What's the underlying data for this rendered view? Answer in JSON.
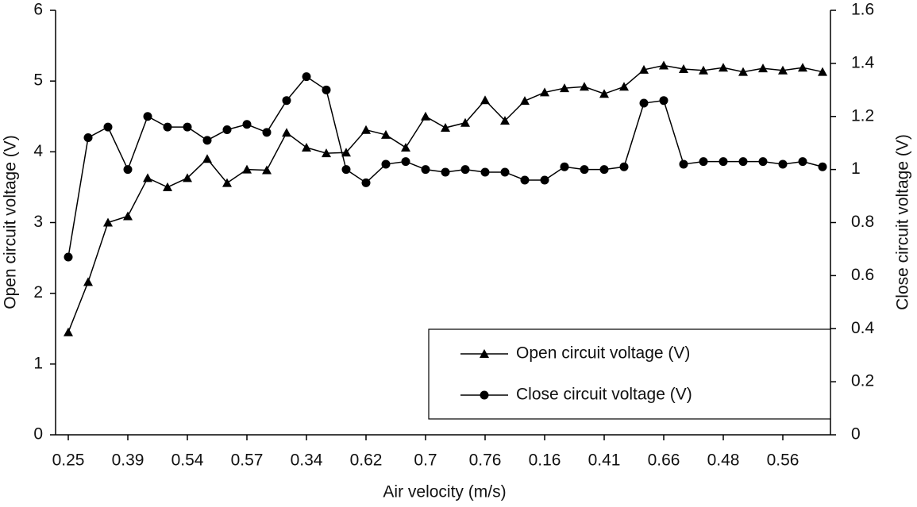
{
  "chart_data": {
    "type": "line",
    "xlabel": "Air velocity (m/s)",
    "ylabel": "Open circuit voltage (V)",
    "y2label": "Close circuit voltage (V)",
    "categories": [
      "0.25",
      null,
      null,
      "0.39",
      null,
      null,
      "0.54",
      null,
      null,
      "0.57",
      null,
      null,
      "0.34",
      null,
      null,
      "0.62",
      null,
      null,
      "0.7",
      null,
      null,
      "0.76",
      null,
      null,
      "0.16",
      null,
      null,
      "0.41",
      null,
      null,
      "0.66",
      null,
      null,
      "0.48",
      null,
      null,
      "0.56",
      null,
      null
    ],
    "series": [
      {
        "name": "Open circuit voltage (V)",
        "color": "#000000",
        "marker": "triangle",
        "values": [
          1.45,
          2.16,
          3.0,
          3.09,
          3.63,
          3.5,
          3.63,
          3.9,
          3.56,
          3.75,
          3.74,
          4.27,
          4.06,
          3.98,
          3.99,
          4.31,
          4.24,
          4.06,
          4.5,
          4.34,
          4.41,
          4.73,
          4.44,
          4.72,
          4.84,
          4.9,
          4.92,
          4.82,
          4.92,
          5.16,
          5.22,
          5.17,
          5.15,
          5.19,
          5.13,
          5.18,
          5.15,
          5.19,
          5.13
        ]
      },
      {
        "name": "Close circuit voltage (V)",
        "color": "#000000",
        "marker": "circle",
        "axis": "y2",
        "values": [
          0.67,
          1.12,
          1.16,
          1.0,
          1.2,
          1.16,
          1.16,
          1.11,
          1.15,
          1.17,
          1.14,
          1.26,
          1.35,
          1.3,
          1.0,
          0.95,
          1.02,
          1.03,
          1.0,
          0.99,
          1.0,
          0.99,
          0.99,
          0.96,
          0.96,
          1.01,
          1.0,
          1.0,
          1.01,
          1.25,
          1.26,
          1.02,
          1.03,
          1.03,
          1.03,
          1.03,
          1.02,
          1.03,
          1.01
        ]
      }
    ],
    "ylim": [
      0,
      6
    ],
    "yticks": [
      0,
      1,
      2,
      3,
      4,
      5,
      6
    ],
    "y2lim": [
      0,
      1.6
    ],
    "y2ticks": [
      0,
      0.2,
      0.4,
      0.6,
      0.8,
      1,
      1.2,
      1.4,
      1.6
    ],
    "legend": "lower right"
  }
}
